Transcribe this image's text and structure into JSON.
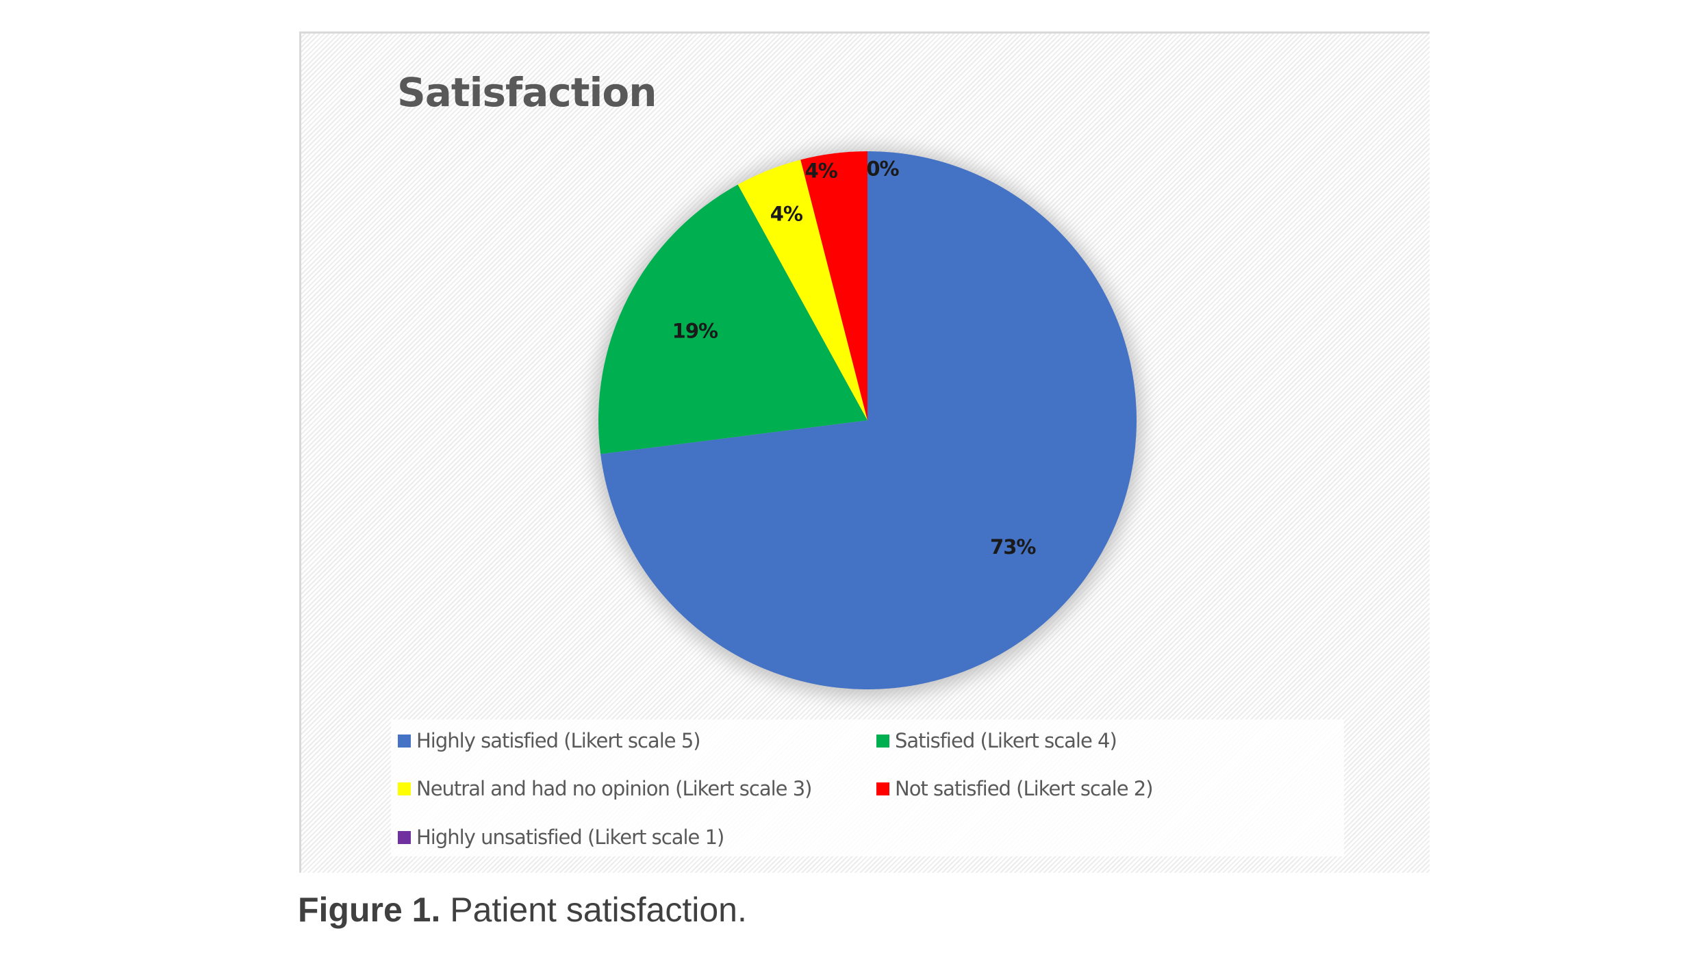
{
  "chart_data": {
    "type": "pie",
    "title": "Satisfaction",
    "categories": [
      "Highly satisfied (Likert scale 5)",
      "Satisfied (Likert scale 4)",
      "Neutral and had no opinion (Likert scale 3)",
      "Not satisfied (Likert scale 2)",
      "Highly unsatisfied (Likert scale 1)"
    ],
    "values": [
      73,
      19,
      4,
      4,
      0
    ],
    "labels": [
      "73%",
      "19%",
      "4%",
      "4%",
      "0%"
    ],
    "colors": [
      "#4472c4",
      "#00b050",
      "#ffff00",
      "#ff0000",
      "#7030a0"
    ],
    "legend_position": "bottom"
  },
  "caption": {
    "label": "Figure 1.",
    "text": " Patient satisfaction."
  }
}
